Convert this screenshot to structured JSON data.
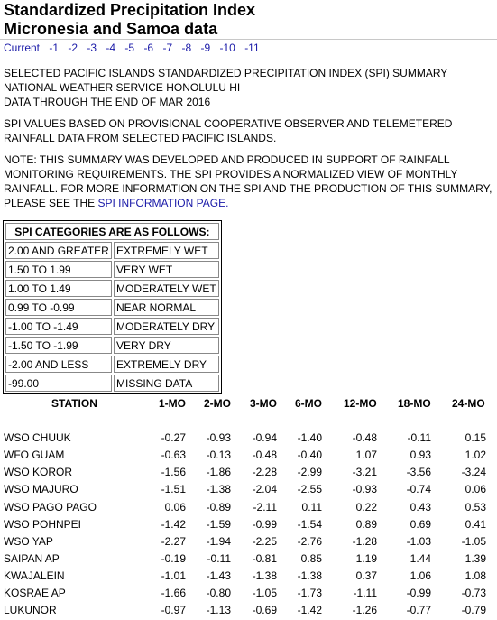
{
  "title_line1": "Standardized Precipitation Index",
  "title_line2": "Micronesia and Samoa data",
  "nav": [
    "Current",
    "-1",
    "-2",
    "-3",
    "-4",
    "-5",
    "-6",
    "-7",
    "-8",
    "-9",
    "-10",
    "-11"
  ],
  "para1": "SELECTED PACIFIC ISLANDS STANDARDIZED PRECIPITATION INDEX (SPI) SUMMARY\nNATIONAL WEATHER SERVICE HONOLULU HI\nDATA THROUGH THE END OF MAR 2016",
  "para2": "SPI VALUES BASED ON PROVISIONAL COOPERATIVE OBSERVER AND TELEMETERED\nRAINFALL DATA FROM SELECTED PACIFIC ISLANDS.",
  "para3_text": "NOTE: THIS SUMMARY WAS DEVELOPED AND PRODUCED IN SUPPORT OF RAINFALL\nMONITORING REQUIREMENTS. THE SPI PROVIDES A NORMALIZED VIEW OF MONTHLY\nRAINFALL. FOR MORE INFORMATION ON THE SPI AND THE PRODUCTION OF THIS SUMMARY,\nPLEASE SEE THE ",
  "para3_link": "SPI INFORMATION PAGE.",
  "categories_header": "SPI CATEGORIES ARE AS FOLLOWS:",
  "categories": [
    {
      "range": "2.00 AND GREATER",
      "label": "EXTREMELY WET"
    },
    {
      "range": "1.50 TO 1.99",
      "label": "VERY WET"
    },
    {
      "range": "1.00 TO 1.49",
      "label": "MODERATELY WET"
    },
    {
      "range": "0.99 TO -0.99",
      "label": "NEAR NORMAL"
    },
    {
      "range": "-1.00 TO -1.49",
      "label": "MODERATELY DRY"
    },
    {
      "range": "-1.50 TO -1.99",
      "label": "VERY DRY"
    },
    {
      "range": "-2.00 AND LESS",
      "label": "EXTREMELY DRY"
    },
    {
      "range": "-99.00",
      "label": "MISSING DATA"
    }
  ],
  "table_headers": [
    "STATION",
    "1-MO",
    "2-MO",
    "3-MO",
    "6-MO",
    "12-MO",
    "18-MO",
    "24-MO"
  ],
  "rows": [
    [
      "WSO CHUUK",
      "-0.27",
      "-0.93",
      "-0.94",
      "-1.40",
      "-0.48",
      "-0.11",
      "0.15"
    ],
    [
      "WFO GUAM",
      "-0.63",
      "-0.13",
      "-0.48",
      "-0.40",
      "1.07",
      "0.93",
      "1.02"
    ],
    [
      "WSO KOROR",
      "-1.56",
      "-1.86",
      "-2.28",
      "-2.99",
      "-3.21",
      "-3.56",
      "-3.24"
    ],
    [
      "WSO MAJURO",
      "-1.51",
      "-1.38",
      "-2.04",
      "-2.55",
      "-0.93",
      "-0.74",
      "0.06"
    ],
    [
      "WSO PAGO PAGO",
      "0.06",
      "-0.89",
      "-2.11",
      "0.11",
      "0.22",
      "0.43",
      "0.53"
    ],
    [
      "WSO POHNPEI",
      "-1.42",
      "-1.59",
      "-0.99",
      "-1.54",
      "0.89",
      "0.69",
      "0.41"
    ],
    [
      "WSO YAP",
      "-2.27",
      "-1.94",
      "-2.25",
      "-2.76",
      "-1.28",
      "-1.03",
      "-1.05"
    ],
    [
      "SAIPAN AP",
      "-0.19",
      "-0.11",
      "-0.81",
      "0.85",
      "1.19",
      "1.44",
      "1.39"
    ],
    [
      "KWAJALEIN",
      "-1.01",
      "-1.43",
      "-1.38",
      "-1.38",
      "0.37",
      "1.06",
      "1.08"
    ],
    [
      "KOSRAE AP",
      "-1.66",
      "-0.80",
      "-1.05",
      "-1.73",
      "-1.11",
      "-0.99",
      "-0.73"
    ],
    [
      "LUKUNOR",
      "-0.97",
      "-1.13",
      "-0.69",
      "-1.42",
      "-1.26",
      "-0.77",
      "-0.79"
    ]
  ],
  "colors": {
    "link": "#1a1aa8",
    "text": "#000000"
  }
}
